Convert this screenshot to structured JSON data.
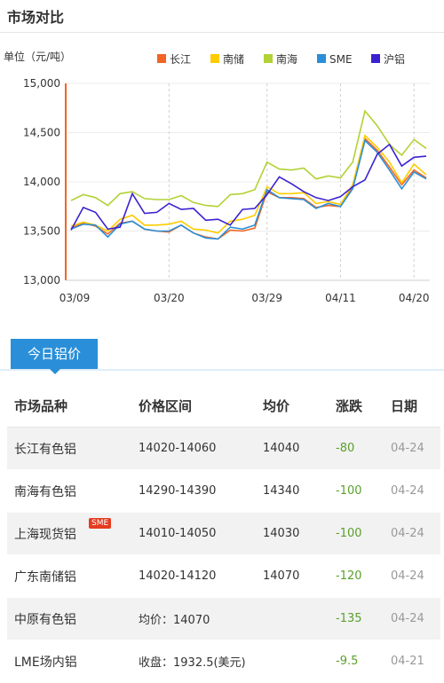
{
  "page_title": "市场对比",
  "chart_data": {
    "type": "line",
    "ylabel": "单位（元/吨）",
    "ylim": [
      13000,
      15000
    ],
    "yticks": [
      "13,000",
      "13,500",
      "14,000",
      "14,500",
      "15,000"
    ],
    "xticks": [
      "03/09",
      "03/20",
      "03/29",
      "04/11",
      "04/20"
    ],
    "grid": true,
    "legend_position": "top-right",
    "colors": {
      "长江": "#f26522",
      "南储": "#ffcc00",
      "南海": "#b2d235",
      "SME": "#2a8fd8",
      "沪铝": "#3b22d0"
    },
    "series": [
      {
        "name": "长江",
        "values": [
          13530,
          13580,
          13550,
          13470,
          13580,
          13600,
          13520,
          13500,
          13490,
          13560,
          13480,
          13440,
          13420,
          13510,
          13500,
          13530,
          13900,
          13840,
          13840,
          13830,
          13740,
          13760,
          13750,
          13950,
          14440,
          14320,
          14150,
          13970,
          14120,
          14040
        ]
      },
      {
        "name": "南储",
        "values": [
          13550,
          13590,
          13560,
          13500,
          13620,
          13660,
          13560,
          13560,
          13570,
          13600,
          13520,
          13510,
          13480,
          13600,
          13620,
          13660,
          13950,
          13880,
          13880,
          13890,
          13780,
          13800,
          13770,
          13970,
          14470,
          14350,
          14200,
          13990,
          14180,
          14070
        ]
      },
      {
        "name": "南海",
        "values": [
          13810,
          13870,
          13840,
          13760,
          13880,
          13900,
          13830,
          13820,
          13820,
          13860,
          13790,
          13760,
          13750,
          13870,
          13880,
          13920,
          14200,
          14130,
          14120,
          14140,
          14030,
          14060,
          14040,
          14200,
          14720,
          14570,
          14380,
          14270,
          14430,
          14340
        ]
      },
      {
        "name": "SME",
        "values": [
          13520,
          13570,
          13560,
          13440,
          13570,
          13600,
          13520,
          13500,
          13500,
          13560,
          13480,
          13430,
          13420,
          13540,
          13520,
          13560,
          13920,
          13840,
          13830,
          13820,
          13730,
          13780,
          13750,
          13930,
          14420,
          14300,
          14120,
          13930,
          14100,
          14030
        ]
      },
      {
        "name": "沪铝",
        "values": [
          13510,
          13740,
          13690,
          13520,
          13540,
          13880,
          13680,
          13690,
          13780,
          13720,
          13730,
          13610,
          13620,
          13560,
          13720,
          13730,
          13870,
          14050,
          13980,
          13900,
          13840,
          13810,
          13850,
          13950,
          14020,
          14280,
          14380,
          14160,
          14250,
          14260
        ]
      }
    ]
  },
  "tab_label": "今日铝价",
  "table": {
    "headers": [
      "市场品种",
      "价格区间",
      "均价",
      "涨跌",
      "日期"
    ],
    "rows": [
      [
        "长江有色铝",
        "14020-14060",
        "14040",
        "-80",
        "04-24"
      ],
      [
        "南海有色铝",
        "14290-14390",
        "14340",
        "-100",
        "04-24"
      ],
      [
        "上海现货铝",
        "14010-14050",
        "14030",
        "-100",
        "04-24"
      ],
      [
        "广东南储铝",
        "14020-14120",
        "14070",
        "-120",
        "04-24"
      ],
      [
        "中原有色铝",
        "均价：14070",
        "",
        "-135",
        "04-24"
      ],
      [
        "LME场内铝",
        "收盘：1932.5(美元)",
        "",
        "-9.5",
        "04-21"
      ]
    ],
    "badge": "SME"
  }
}
